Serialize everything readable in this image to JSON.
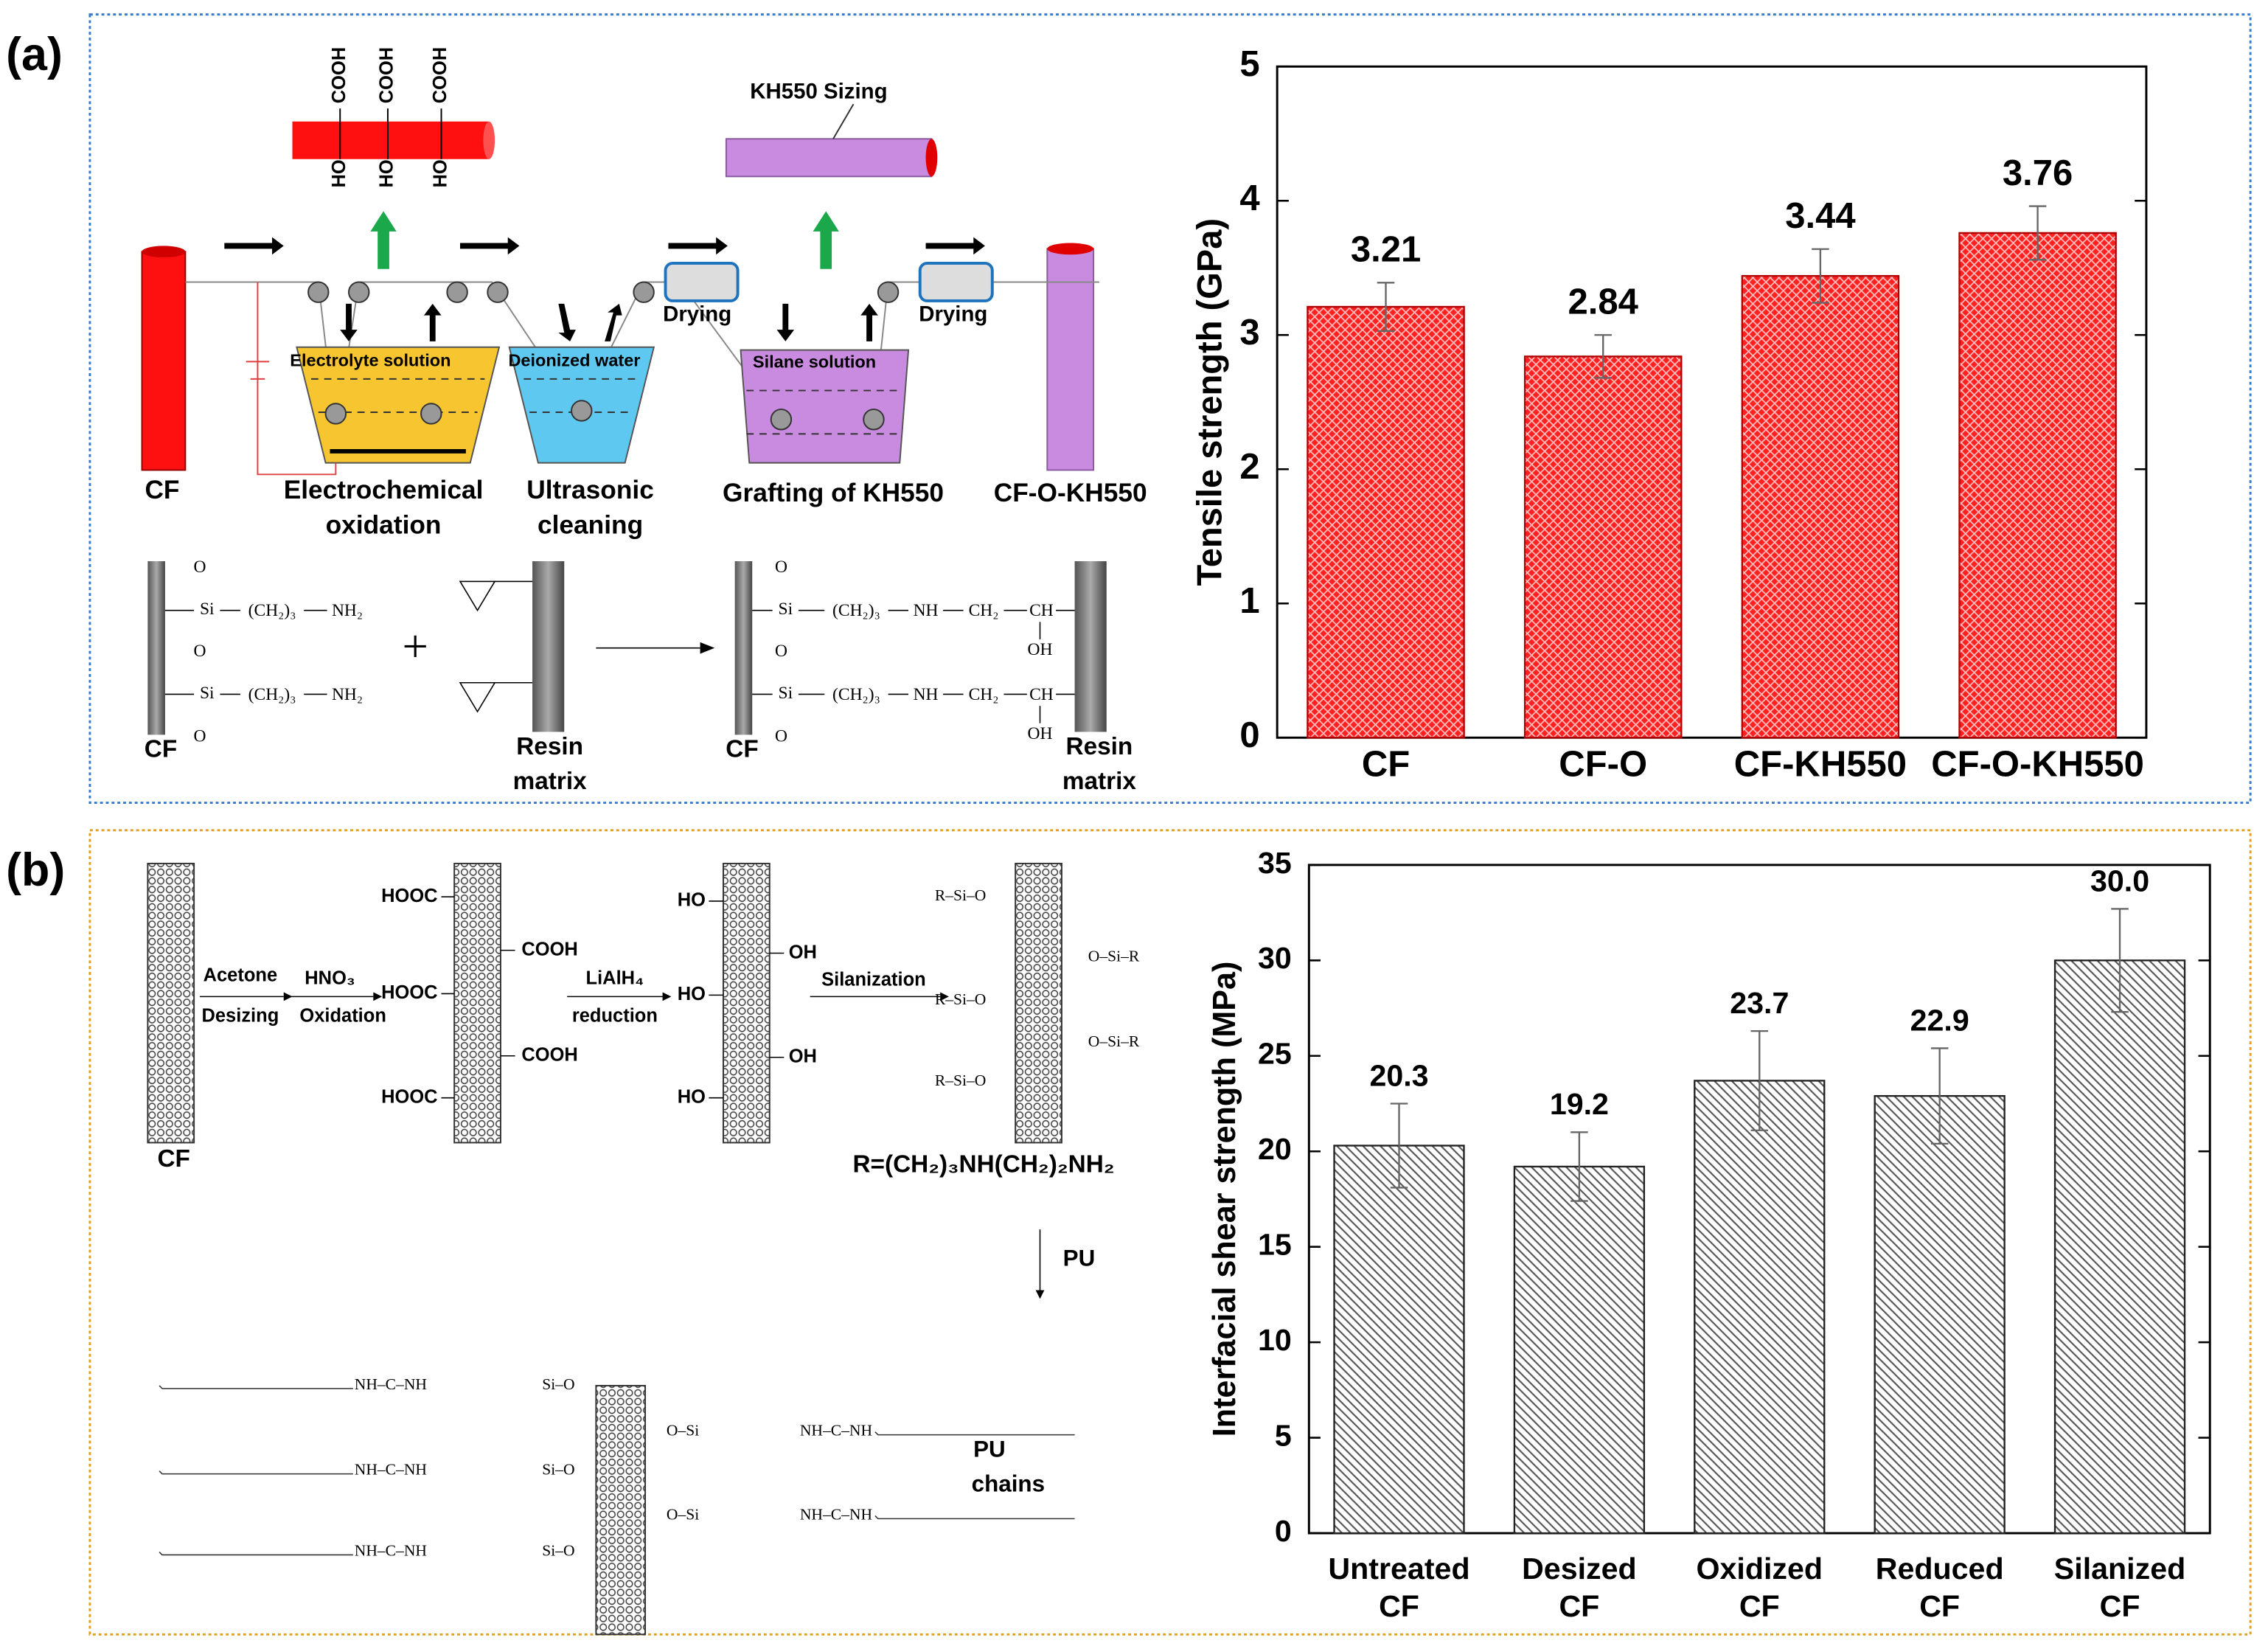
{
  "panel_labels": [
    "(a)",
    "(b)"
  ],
  "diagram_a": {
    "labels": [
      "KH550 Sizing",
      "Drying",
      "Drying",
      "Electrolyte solution",
      "Deionized water",
      "Silane solution",
      "CF",
      "Electrochemical",
      "oxidation",
      "Ultrasonic",
      "cleaning",
      "Grafting of KH550",
      "CF-O-KH550",
      "COOH",
      "COOH",
      "COOH",
      "HO",
      "HO",
      "HO",
      "Si",
      "(CH₂)₃",
      "NH₂",
      "Si",
      "(CH₂)₃",
      "NH₂",
      "+",
      "CF",
      "Resin",
      "matrix",
      "Si",
      "(CH₂)₃",
      "NH",
      "CH₂",
      "CH",
      "OH",
      "Si",
      "(CH₂)₃",
      "NH",
      "CH₂",
      "CH",
      "OH",
      "CF",
      "Resin",
      "matrix",
      "O",
      "O",
      "O",
      "O",
      "O",
      "O"
    ]
  },
  "diagram_b": {
    "labels": [
      "Acetone",
      "Desizing",
      "HNO₃",
      "Oxidation",
      "HOOC",
      "HOOC",
      "HOOC",
      "COOH",
      "COOH",
      "LiAlH₄",
      "reduction",
      "HO",
      "HO",
      "HO",
      "OH",
      "OH",
      "Silanization",
      "CF",
      "R=(CH₂)₃NH(CH₂)₂NH₂",
      "PU",
      "PU",
      "chains",
      "R–Si–O",
      "R–Si–O",
      "R–Si–O",
      "O–Si–R",
      "O–Si–R",
      "NH–C–NH",
      "NH–C–NH",
      "NH–C–NH",
      "Si–O",
      "Si–O",
      "Si–O",
      "O–Si",
      "O–Si",
      "NH–C–NH",
      "NH–C–NH"
    ]
  },
  "chart_data": [
    {
      "type": "bar",
      "ylabel": "Tensile strength (GPa)",
      "categories": [
        "CF",
        "CF-O",
        "CF-KH550",
        "CF-O-KH550"
      ],
      "values": [
        3.21,
        2.84,
        3.44,
        3.76
      ],
      "errors": [
        0.18,
        0.16,
        0.2,
        0.2
      ],
      "color": "#ff2020",
      "edgecolor": "#b00000",
      "ylim": [
        0,
        5
      ],
      "yticks": [
        0,
        1,
        2,
        3,
        4,
        5
      ]
    },
    {
      "type": "bar",
      "ylabel": "Interfacial shear strength (MPa)",
      "categories": [
        [
          "Untreated",
          "CF"
        ],
        [
          "Desized",
          "CF"
        ],
        [
          "Oxidized",
          "CF"
        ],
        [
          "Reduced",
          "CF"
        ],
        [
          "Silanized",
          "CF"
        ]
      ],
      "values": [
        20.3,
        19.2,
        23.7,
        22.9,
        30.0
      ],
      "value_labels": [
        "20.3",
        "19.2",
        "23.7",
        "22.9",
        "30.0"
      ],
      "errors": [
        2.2,
        1.8,
        2.6,
        2.5,
        2.7
      ],
      "color": "#555555",
      "edgecolor": "#222222",
      "ylim": [
        0,
        35
      ],
      "yticks": [
        0,
        5,
        10,
        15,
        20,
        25,
        30,
        35
      ]
    }
  ]
}
